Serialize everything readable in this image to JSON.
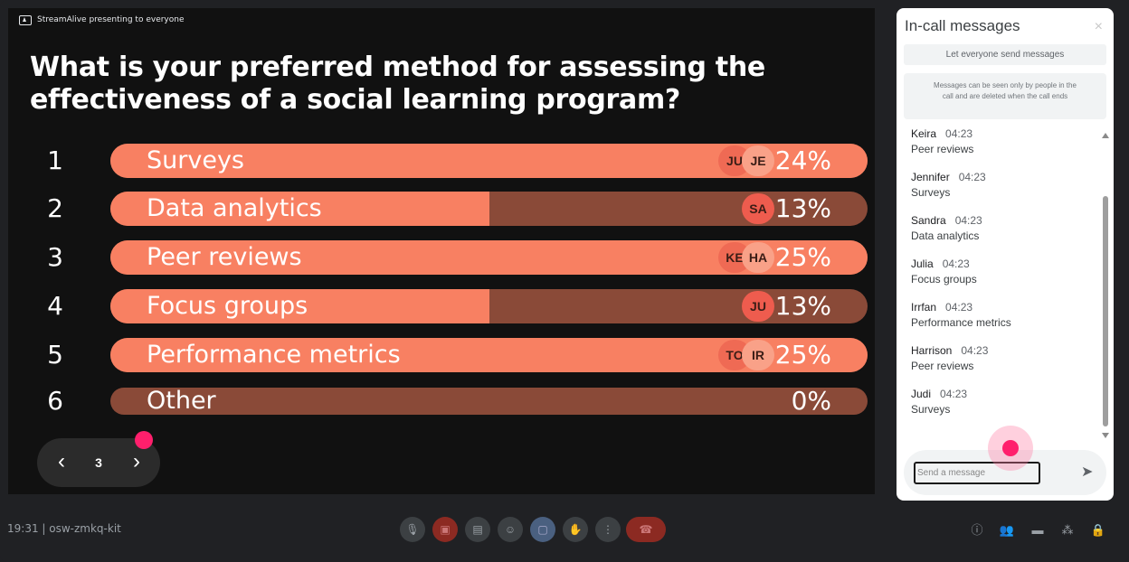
{
  "presenting_banner": "StreamAlive presenting to everyone",
  "question": "What is your preferred method for assessing the effectiveness of a social learning program?",
  "poll": {
    "options": [
      {
        "num": "1",
        "label": "Surveys",
        "percent": "24%",
        "fill": 1.0,
        "avatars": [
          "JU",
          "JE"
        ]
      },
      {
        "num": "2",
        "label": "Data analytics",
        "percent": "13%",
        "fill": 0.5,
        "avatars": [
          "SA"
        ]
      },
      {
        "num": "3",
        "label": "Peer reviews",
        "percent": "25%",
        "fill": 1.0,
        "avatars": [
          "KE",
          "HA"
        ]
      },
      {
        "num": "4",
        "label": "Focus groups",
        "percent": "13%",
        "fill": 0.5,
        "avatars": [
          "JU"
        ]
      },
      {
        "num": "5",
        "label": "Performance metrics",
        "percent": "25%",
        "fill": 1.0,
        "avatars": [
          "TO",
          "IR"
        ]
      },
      {
        "num": "6",
        "label": "Other",
        "percent": "0%",
        "fill": 0.0,
        "avatars": []
      }
    ]
  },
  "pager": {
    "prev_icon": "chevron-left-icon",
    "next_icon": "chevron-right-icon",
    "page": "3",
    "prev": "‹",
    "next": "›"
  },
  "panel": {
    "title": "In-call messages",
    "close": "×",
    "allow_button": "Let everyone send messages",
    "notice": "Messages can be seen only by people in the call and are deleted when the call ends",
    "messages": [
      {
        "sender": "Keira",
        "time": "04:23",
        "text": "Peer reviews"
      },
      {
        "sender": "Jennifer",
        "time": "04:23",
        "text": "Surveys"
      },
      {
        "sender": "Sandra",
        "time": "04:23",
        "text": "Data analytics"
      },
      {
        "sender": "Julia",
        "time": "04:23",
        "text": "Focus groups"
      },
      {
        "sender": "Irrfan",
        "time": "04:23",
        "text": "Performance metrics"
      },
      {
        "sender": "Harrison",
        "time": "04:23",
        "text": "Peer reviews"
      },
      {
        "sender": "Judi",
        "time": "04:23",
        "text": "Surveys"
      }
    ],
    "input_placeholder": "Send a message",
    "send": "➤"
  },
  "meeting": {
    "info": "19:31  |  osw-zmkq-kit"
  },
  "colors": {
    "accent": "#f88062",
    "bar_bg": "#8a4a38",
    "cursor": "#ff1f6c"
  }
}
